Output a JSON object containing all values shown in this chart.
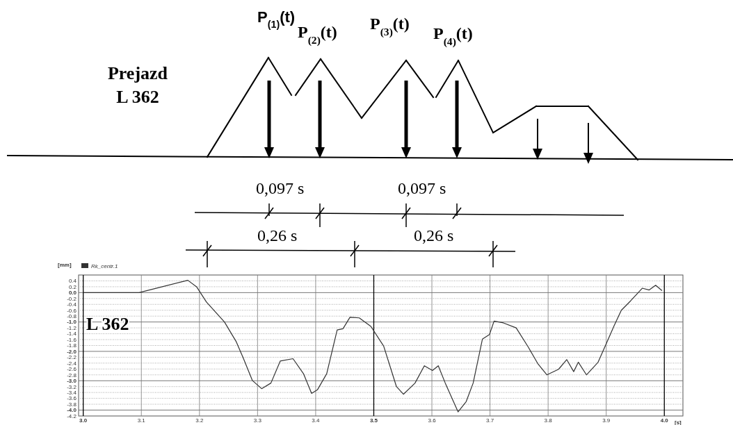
{
  "chart_data": {
    "type": "line",
    "xlabel": "[s]",
    "ylabel": "[mm]",
    "annotations": [
      "P$_{(1)}$(t)",
      "P$_{(2)}$(t)",
      "P$_{(3)}$(t)",
      "P$_{(4)}$(t)",
      "Prejazd\nL 362",
      "L 362",
      "0,097 s",
      "0,097 s",
      "0,26 s",
      "0,26 s"
    ],
    "xlim": [
      2.992,
      4.032
    ],
    "xticks": [
      {
        "value": 3.0,
        "label": "3.0"
      },
      3.1,
      3.2,
      3.3,
      3.4,
      3.5,
      3.6,
      3.7,
      3.8,
      3.9,
      {
        "value": 4.0,
        "label": "4.0"
      }
    ],
    "ylim": [
      -4.2,
      0.6
    ],
    "yticks": [
      0.4,
      0.2,
      {
        "value": 0,
        "label": "0.0"
      },
      -0.2,
      -0.4,
      -0.6,
      -0.8,
      {
        "value": -1,
        "label": "-1.0"
      },
      -1.2,
      -1.4,
      -1.6,
      -1.8,
      {
        "value": -2,
        "label": "-2.0"
      },
      -2.2,
      -2.4,
      -2.6,
      -2.8,
      {
        "value": -3,
        "label": "-3.0"
      },
      -3.2,
      -3.4,
      -3.6,
      -3.8,
      {
        "value": -4,
        "label": "-4.0"
      },
      -4.2
    ],
    "grid": true,
    "legend": "top left",
    "marker": "none",
    "line_style": "solid",
    "series": [
      {
        "name": "Rk_centr.1",
        "color": "#333333",
        "x": [
          3.0,
          3.05,
          3.096,
          3.18,
          3.195,
          3.212,
          3.243,
          3.263,
          3.275,
          3.291,
          3.307,
          3.323,
          3.339,
          3.361,
          3.379,
          3.393,
          3.403,
          3.419,
          3.437,
          3.447,
          3.459,
          3.475,
          3.495,
          3.517,
          3.539,
          3.551,
          3.571,
          3.587,
          3.601,
          3.611,
          3.623,
          3.645,
          3.659,
          3.671,
          3.687,
          3.699,
          3.707,
          3.723,
          3.745,
          3.766,
          3.782,
          3.798,
          3.818,
          3.832,
          3.844,
          3.852,
          3.866,
          3.886,
          3.9,
          3.914,
          3.926,
          3.942,
          3.962,
          3.974,
          3.985,
          3.996
        ],
        "values": [
          0.0,
          0.0,
          0.0,
          0.42,
          0.2,
          -0.32,
          -1.0,
          -1.66,
          -2.21,
          -2.99,
          -3.27,
          -3.08,
          -2.33,
          -2.25,
          -2.76,
          -3.43,
          -3.31,
          -2.76,
          -1.27,
          -1.23,
          -0.84,
          -0.86,
          -1.15,
          -1.82,
          -3.2,
          -3.46,
          -3.08,
          -2.49,
          -2.65,
          -2.49,
          -3.08,
          -4.06,
          -3.71,
          -3.08,
          -1.58,
          -1.43,
          -0.97,
          -1.03,
          -1.2,
          -1.86,
          -2.41,
          -2.8,
          -2.61,
          -2.28,
          -2.69,
          -2.37,
          -2.8,
          -2.37,
          -1.74,
          -1.11,
          -0.6,
          -0.28,
          0.15,
          0.09,
          0.25,
          0.07
        ]
      }
    ]
  }
}
